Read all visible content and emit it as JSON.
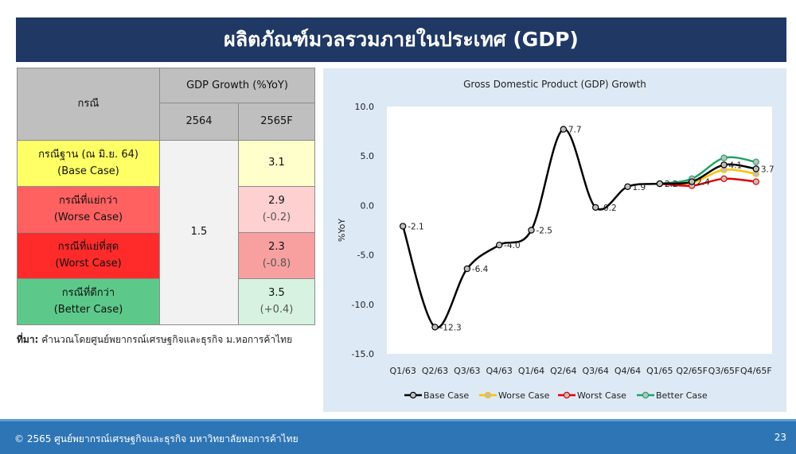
{
  "title": "ผลิตภัณฑ์มวลรวมภายในประเทศ (GDP)",
  "table": {
    "col_case": "กรณี",
    "col_group": "GDP Growth (%YoY)",
    "col_2564": "2564",
    "col_2565": "2565F",
    "shared_2564": "1.5",
    "rows": [
      {
        "th": "กรณีฐาน (ณ มิ.ย. 64)",
        "en": "(Base Case)",
        "value": "3.1",
        "diff": "",
        "label_bg": "#ffff66",
        "value_bg": "#ffffcc"
      },
      {
        "th": "กรณีที่แย่กว่า",
        "en": "(Worse Case)",
        "value": "2.9",
        "diff": "(-0.2)",
        "label_bg": "#ff6161",
        "value_bg": "#ffd0d0"
      },
      {
        "th": "กรณีที่แย่ที่สุด",
        "en": "(Worst Case)",
        "value": "2.3",
        "diff": "(-0.8)",
        "label_bg": "#ff2b2b",
        "value_bg": "#f8a0a0"
      },
      {
        "th": "กรณีที่ดีกว่า",
        "en": "(Better Case)",
        "value": "3.5",
        "diff": "(+0.4)",
        "label_bg": "#5cc98a",
        "value_bg": "#d7f2e1"
      }
    ]
  },
  "source": {
    "label": "ที่มา:",
    "text": "คำนวณโดยศูนย์พยากรณ์เศรษฐกิจและธุรกิจ ม.หอการค้าไทย"
  },
  "chart_data": {
    "type": "line",
    "title": "Gross Domestic Product (GDP) Growth",
    "ylabel": "%YoY",
    "xlabel": "",
    "ylim": [
      -15,
      10
    ],
    "yticks": [
      "10.0",
      "5.0",
      "0.0",
      "-5.0",
      "-10.0",
      "-15.0"
    ],
    "yticks_values": [
      10,
      5,
      0,
      -5,
      -10,
      -15
    ],
    "categories": [
      "Q1/63",
      "Q2/63",
      "Q3/63",
      "Q4/63",
      "Q1/64",
      "Q2/64",
      "Q3/64",
      "Q4/64",
      "Q1/65",
      "Q2/65F",
      "Q3/65F",
      "Q4/65F"
    ],
    "legend_position": "bottom",
    "series": [
      {
        "name": "Base Case",
        "color": "#000000",
        "values": [
          -2.1,
          -12.3,
          -6.4,
          -4.0,
          -2.5,
          7.7,
          -0.2,
          1.9,
          2.2,
          2.4,
          4.1,
          3.7
        ],
        "labels": [
          "-2.1",
          "-12.3",
          "-6.4",
          "-4.0",
          "-2.5",
          "7.7",
          "-0.2",
          "1.9",
          "2.2",
          "2.4",
          "4.1",
          "3.7"
        ]
      },
      {
        "name": "Worse Case",
        "color": "#ffc000",
        "values": [
          null,
          null,
          null,
          null,
          null,
          null,
          null,
          null,
          2.2,
          2.3,
          3.6,
          3.2
        ]
      },
      {
        "name": "Worst Case",
        "color": "#e00000",
        "values": [
          null,
          null,
          null,
          null,
          null,
          null,
          null,
          null,
          2.2,
          2.0,
          2.7,
          2.4
        ]
      },
      {
        "name": "Better Case",
        "color": "#21a366",
        "values": [
          null,
          null,
          null,
          null,
          null,
          null,
          null,
          null,
          2.2,
          2.7,
          4.8,
          4.4
        ]
      }
    ]
  },
  "footer": {
    "copyright": "© 2565 ศูนย์พยากรณ์เศรษฐกิจและธุรกิจ มหาวิทยาลัยหอการค้าไทย",
    "page": "23"
  }
}
